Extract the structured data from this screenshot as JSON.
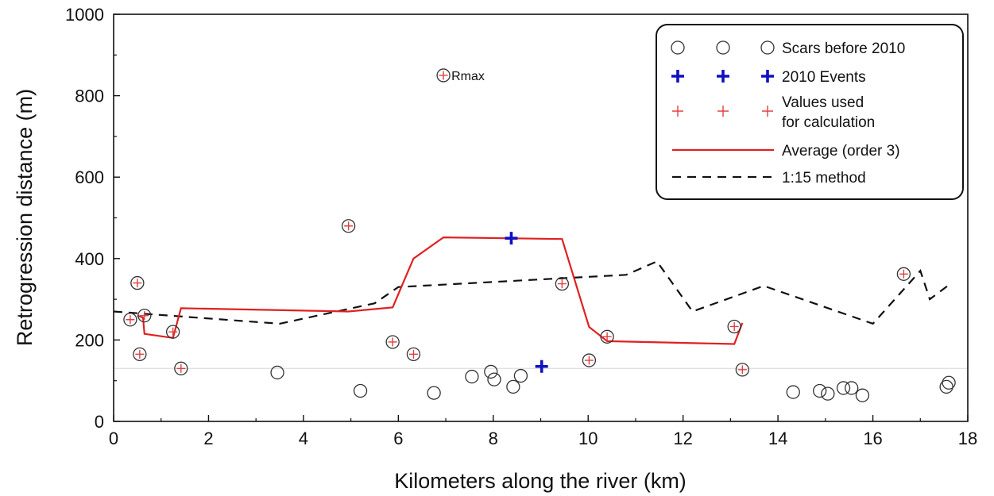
{
  "chart_data": {
    "type": "scatter",
    "xlabel": "Kilometers along the river (km)",
    "ylabel": "Retrogression distance (m)",
    "xlim": [
      0,
      18
    ],
    "ylim": [
      0,
      1000
    ],
    "x_ticks": [
      0,
      2,
      4,
      6,
      8,
      10,
      12,
      14,
      16,
      18
    ],
    "y_ticks": [
      0,
      200,
      400,
      600,
      800,
      1000
    ],
    "grid": false,
    "reference_line_y": 130,
    "legend_position": "top-right",
    "legend": [
      {
        "label": "Scars before 2010",
        "marker": "open-circle"
      },
      {
        "label": "2010 Events",
        "marker": "blue-plus"
      },
      {
        "label": "Values used",
        "label_line2": "for calculation",
        "marker": "red-plus"
      },
      {
        "label": "Average (order 3)",
        "marker": "red-line"
      },
      {
        "label": "1:15 method",
        "marker": "black-dashed-line"
      }
    ],
    "colors": {
      "average": "#e02020",
      "method": "#111111",
      "events": "#1010c0",
      "used": "#e04040",
      "scars": "#333333"
    },
    "annotation": {
      "text": "Rmax",
      "x": 6.95,
      "y": 850
    },
    "series": [
      {
        "name": "Scars before 2010",
        "points": [
          [
            0.35,
            250
          ],
          [
            0.5,
            340
          ],
          [
            0.55,
            165
          ],
          [
            0.65,
            260
          ],
          [
            1.25,
            220
          ],
          [
            1.42,
            130
          ],
          [
            3.45,
            120
          ],
          [
            4.95,
            480
          ],
          [
            5.2,
            75
          ],
          [
            5.88,
            195
          ],
          [
            6.32,
            165
          ],
          [
            6.75,
            70
          ],
          [
            6.95,
            850
          ],
          [
            7.55,
            110
          ],
          [
            7.95,
            122
          ],
          [
            8.02,
            103
          ],
          [
            8.42,
            85
          ],
          [
            8.58,
            112
          ],
          [
            9.45,
            338
          ],
          [
            10.02,
            150
          ],
          [
            10.4,
            208
          ],
          [
            13.08,
            233
          ],
          [
            13.25,
            127
          ],
          [
            14.32,
            72
          ],
          [
            14.88,
            75
          ],
          [
            15.05,
            68
          ],
          [
            15.38,
            82
          ],
          [
            15.55,
            82
          ],
          [
            15.78,
            64
          ],
          [
            16.65,
            362
          ],
          [
            17.55,
            85
          ],
          [
            17.6,
            95
          ]
        ]
      },
      {
        "name": "2010 Events",
        "points": [
          [
            8.38,
            450
          ],
          [
            9.02,
            135
          ]
        ]
      },
      {
        "name": "Values used for calculation",
        "points": [
          [
            0.35,
            250
          ],
          [
            0.5,
            340
          ],
          [
            0.55,
            165
          ],
          [
            0.65,
            260
          ],
          [
            1.25,
            220
          ],
          [
            1.42,
            130
          ],
          [
            4.95,
            480
          ],
          [
            5.88,
            195
          ],
          [
            6.32,
            165
          ],
          [
            6.95,
            850
          ],
          [
            8.38,
            450
          ],
          [
            9.45,
            338
          ],
          [
            10.02,
            150
          ],
          [
            10.4,
            208
          ],
          [
            13.08,
            233
          ],
          [
            13.25,
            127
          ],
          [
            16.65,
            362
          ]
        ]
      },
      {
        "name": "Average (order 3)",
        "points": [
          [
            0.5,
            260
          ],
          [
            0.62,
            255
          ],
          [
            0.65,
            215
          ],
          [
            1.25,
            205
          ],
          [
            1.42,
            278
          ],
          [
            4.95,
            270
          ],
          [
            5.88,
            280
          ],
          [
            6.32,
            400
          ],
          [
            6.95,
            452
          ],
          [
            9.45,
            448
          ],
          [
            10.02,
            232
          ],
          [
            10.4,
            197
          ],
          [
            13.08,
            190
          ],
          [
            13.25,
            242
          ]
        ]
      },
      {
        "name": "1:15 method",
        "points": [
          [
            0,
            270
          ],
          [
            3.5,
            240
          ],
          [
            5.5,
            290
          ],
          [
            6.0,
            330
          ],
          [
            10.8,
            360
          ],
          [
            11.45,
            393
          ],
          [
            12.2,
            270
          ],
          [
            13.7,
            333
          ],
          [
            16.0,
            240
          ],
          [
            17.0,
            370
          ],
          [
            17.2,
            300
          ],
          [
            17.6,
            335
          ]
        ]
      }
    ]
  }
}
